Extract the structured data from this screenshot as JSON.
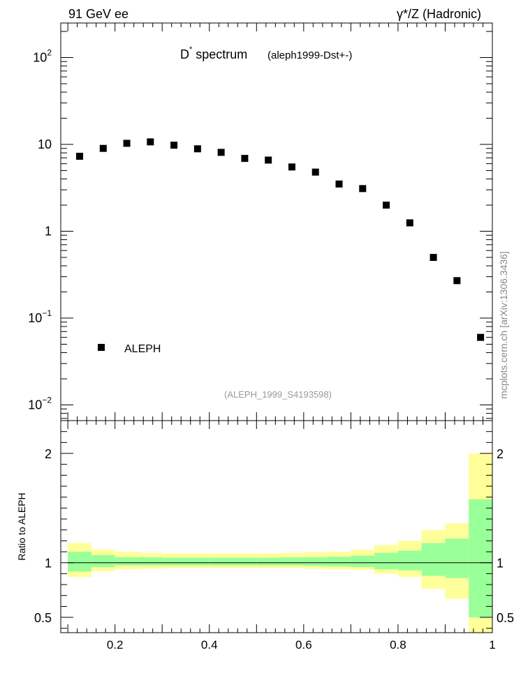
{
  "header": {
    "left": "91 GeV ee",
    "right": "γ*/Z (Hadronic)"
  },
  "side_label": "mcplots.cern.ch [arXiv:1306.3436]",
  "colors": {
    "band_outer": "#ffff99",
    "band_inner": "#99ff99",
    "marker": "#000000"
  },
  "chart_data": [
    {
      "type": "scatter",
      "title_main": "D",
      "title_sup": "*",
      "title_rest": " spectrum",
      "title_tag": "(aleph1999-Dst+-)",
      "yscale": "log",
      "ylim": [
        0.0066,
        250
      ],
      "xlim": [
        0.085,
        1.0
      ],
      "ytick_labels": [
        {
          "v": 0.01,
          "base": "10",
          "exp": "−2"
        },
        {
          "v": 0.1,
          "base": "10",
          "exp": "−1"
        },
        {
          "v": 1,
          "base": "1",
          "exp": ""
        },
        {
          "v": 10,
          "base": "10",
          "exp": ""
        },
        {
          "v": 100,
          "base": "10",
          "exp": "2"
        }
      ],
      "legend": {
        "label": "ALEPH",
        "placement": "lower-left"
      },
      "watermark": "(ALEPH_1999_S4193598)",
      "x": [
        0.125,
        0.175,
        0.225,
        0.275,
        0.325,
        0.375,
        0.425,
        0.475,
        0.525,
        0.575,
        0.625,
        0.675,
        0.725,
        0.775,
        0.825,
        0.875,
        0.925,
        0.975
      ],
      "y": [
        7.3,
        9.0,
        10.3,
        10.7,
        9.8,
        8.9,
        8.1,
        6.9,
        6.6,
        5.5,
        4.8,
        3.5,
        3.1,
        2.0,
        1.25,
        0.5,
        0.27,
        0.06
      ]
    },
    {
      "type": "area",
      "ylabel": "Ratio to ALEPH",
      "ylim": [
        0.36,
        2.3
      ],
      "xlim": [
        0.085,
        1.0
      ],
      "yticks": [
        0.5,
        1,
        2
      ],
      "ytick_labels": [
        "0.5",
        "1",
        "2"
      ],
      "xticks": [
        0.2,
        0.4,
        0.6,
        0.8,
        1.0
      ],
      "xtick_labels": [
        "0.2",
        "0.4",
        "0.6",
        "0.8",
        "1"
      ],
      "bin_edges": [
        0.1,
        0.15,
        0.2,
        0.25,
        0.3,
        0.35,
        0.4,
        0.45,
        0.5,
        0.55,
        0.6,
        0.65,
        0.7,
        0.75,
        0.8,
        0.85,
        0.9,
        0.95,
        1.0
      ],
      "band_outer_low": [
        0.87,
        0.92,
        0.94,
        0.945,
        0.95,
        0.95,
        0.95,
        0.95,
        0.95,
        0.95,
        0.945,
        0.94,
        0.935,
        0.9,
        0.87,
        0.76,
        0.67,
        0.36
      ],
      "band_outer_high": [
        1.18,
        1.12,
        1.1,
        1.09,
        1.085,
        1.085,
        1.085,
        1.085,
        1.085,
        1.09,
        1.095,
        1.1,
        1.12,
        1.16,
        1.2,
        1.3,
        1.36,
        2.0
      ],
      "band_inner_low": [
        0.92,
        0.96,
        0.975,
        0.975,
        0.975,
        0.975,
        0.975,
        0.975,
        0.975,
        0.975,
        0.97,
        0.965,
        0.96,
        0.94,
        0.93,
        0.88,
        0.86,
        0.5
      ],
      "band_inner_high": [
        1.1,
        1.07,
        1.05,
        1.05,
        1.045,
        1.045,
        1.045,
        1.045,
        1.045,
        1.05,
        1.05,
        1.055,
        1.065,
        1.09,
        1.11,
        1.18,
        1.22,
        1.58
      ],
      "reference_line": 1.0
    }
  ]
}
